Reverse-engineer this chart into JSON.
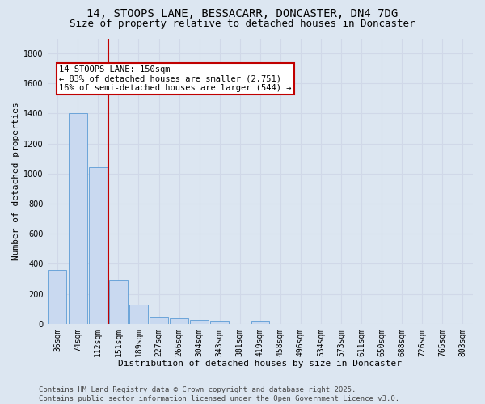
{
  "title_line1": "14, STOOPS LANE, BESSACARR, DONCASTER, DN4 7DG",
  "title_line2": "Size of property relative to detached houses in Doncaster",
  "xlabel": "Distribution of detached houses by size in Doncaster",
  "ylabel": "Number of detached properties",
  "categories": [
    "36sqm",
    "74sqm",
    "112sqm",
    "151sqm",
    "189sqm",
    "227sqm",
    "266sqm",
    "304sqm",
    "343sqm",
    "381sqm",
    "419sqm",
    "458sqm",
    "496sqm",
    "534sqm",
    "573sqm",
    "611sqm",
    "650sqm",
    "688sqm",
    "726sqm",
    "765sqm",
    "803sqm"
  ],
  "values": [
    360,
    1400,
    1040,
    290,
    130,
    45,
    38,
    28,
    18,
    0,
    18,
    0,
    0,
    0,
    0,
    0,
    0,
    0,
    0,
    0,
    0
  ],
  "bar_color": "#c9d9f0",
  "bar_edge_color": "#5b9bd5",
  "vline_color": "#c00000",
  "annotation_line1": "14 STOOPS LANE: 150sqm",
  "annotation_line2": "← 83% of detached houses are smaller (2,751)",
  "annotation_line3": "16% of semi-detached houses are larger (544) →",
  "annotation_box_color": "#c00000",
  "annotation_text_color": "#000000",
  "annotation_bg": "#ffffff",
  "ylim": [
    0,
    1900
  ],
  "yticks": [
    0,
    200,
    400,
    600,
    800,
    1000,
    1200,
    1400,
    1600,
    1800
  ],
  "grid_color": "#d0d8e8",
  "background_color": "#dce6f1",
  "footer": "Contains HM Land Registry data © Crown copyright and database right 2025.\nContains public sector information licensed under the Open Government Licence v3.0.",
  "title_fontsize": 10,
  "subtitle_fontsize": 9,
  "axis_label_fontsize": 8,
  "tick_fontsize": 7,
  "annotation_fontsize": 7.5,
  "footer_fontsize": 6.5
}
